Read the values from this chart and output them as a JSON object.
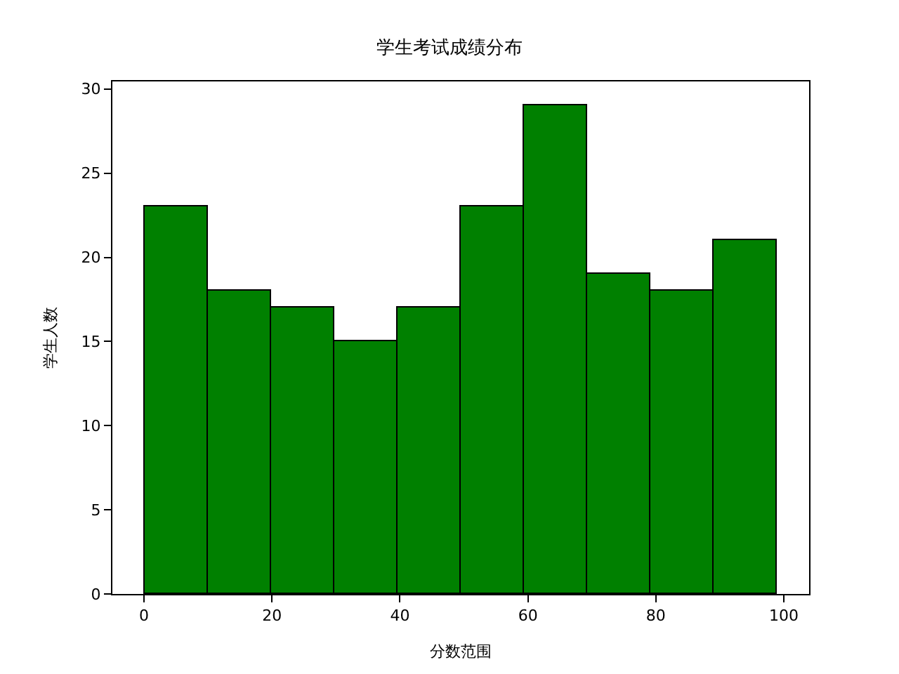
{
  "chart_data": {
    "type": "histogram",
    "title": "学生考试成绩分布",
    "xlabel": "分数范围",
    "ylabel": "学生人数",
    "bins": [
      0,
      9.9,
      19.8,
      29.7,
      39.6,
      49.5,
      59.4,
      69.3,
      79.2,
      89.1,
      99
    ],
    "values": [
      23,
      18,
      17,
      15,
      17,
      23,
      29,
      19,
      18,
      21
    ],
    "color": "#008000",
    "xlim": [
      -4.95,
      103.95
    ],
    "xticks": [
      0,
      20,
      40,
      60,
      80,
      100
    ],
    "ylim": [
      0,
      30.45
    ],
    "yticks": [
      0,
      5,
      10,
      15,
      20,
      25,
      30
    ]
  }
}
